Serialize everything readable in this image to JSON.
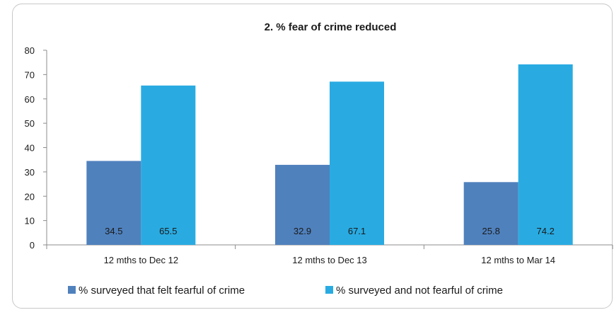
{
  "chart_data": {
    "type": "bar",
    "title": "2. % fear of crime reduced",
    "categories": [
      "12 mths to Dec 12",
      "12 mths to Dec 13",
      "12 mths to Mar 14"
    ],
    "series": [
      {
        "name": "% surveyed that felt fearful of crime",
        "values": [
          34.5,
          32.9,
          25.8
        ],
        "color": "#4f81bd"
      },
      {
        "name": "% surveyed and not fearful of crime",
        "values": [
          65.5,
          67.1,
          74.2
        ],
        "color": "#29abe2"
      }
    ],
    "ylim": [
      0,
      80
    ],
    "yticks": [
      0,
      10,
      20,
      30,
      40,
      50,
      60,
      70,
      80
    ],
    "xlabel": "",
    "ylabel": "",
    "grid": false,
    "legend_position": "bottom",
    "data_label_position": "inside-base"
  }
}
